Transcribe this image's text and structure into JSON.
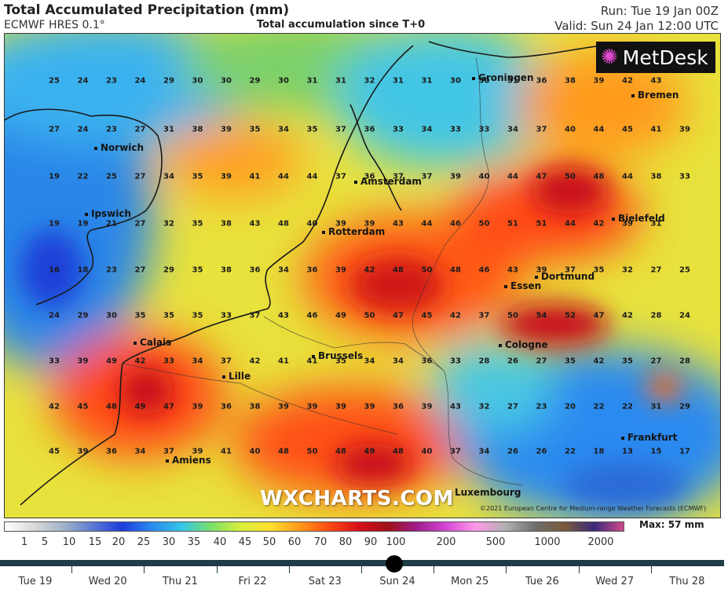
{
  "header": {
    "title": "Total Accumulated Precipitation (mm)",
    "model": "ECMWF HRES 0.1°",
    "subtitle": "Total accumulation since T+0",
    "run": "Run: Tue 19 Jan 00Z",
    "valid": "Valid: Sun 24 Jan 12:00 UTC"
  },
  "logo": {
    "text": "MetDesk"
  },
  "watermark": "WXCHARTS.COM",
  "copyright": "©2021 European Centre for Medium-range Weather Forecasts (ECMWF)",
  "grid_values": [
    [
      "25",
      "24",
      "23",
      "24",
      "29",
      "30",
      "30",
      "29",
      "30",
      "31",
      "31",
      "32",
      "31",
      "31",
      "30",
      "30",
      "31",
      "36",
      "38",
      "39",
      "42",
      "43"
    ],
    [
      "27",
      "24",
      "23",
      "27",
      "31",
      "38",
      "39",
      "35",
      "34",
      "35",
      "37",
      "36",
      "33",
      "34",
      "33",
      "33",
      "34",
      "37",
      "40",
      "44",
      "45",
      "41",
      "39"
    ],
    [
      "19",
      "22",
      "25",
      "27",
      "34",
      "35",
      "39",
      "41",
      "44",
      "44",
      "37",
      "36",
      "37",
      "37",
      "39",
      "40",
      "44",
      "47",
      "50",
      "48",
      "44",
      "38",
      "33"
    ],
    [
      "19",
      "19",
      "21",
      "27",
      "32",
      "35",
      "38",
      "43",
      "48",
      "40",
      "39",
      "39",
      "43",
      "44",
      "46",
      "50",
      "51",
      "51",
      "44",
      "42",
      "39",
      "31"
    ],
    [
      "16",
      "18",
      "23",
      "27",
      "29",
      "35",
      "38",
      "36",
      "34",
      "36",
      "39",
      "42",
      "48",
      "50",
      "48",
      "46",
      "43",
      "39",
      "37",
      "35",
      "32",
      "27",
      "25"
    ],
    [
      "24",
      "29",
      "30",
      "35",
      "35",
      "35",
      "33",
      "37",
      "43",
      "46",
      "49",
      "50",
      "47",
      "45",
      "42",
      "37",
      "50",
      "54",
      "52",
      "47",
      "42",
      "28",
      "24"
    ],
    [
      "33",
      "39",
      "49",
      "42",
      "33",
      "34",
      "37",
      "42",
      "41",
      "41",
      "35",
      "34",
      "34",
      "36",
      "33",
      "28",
      "26",
      "27",
      "35",
      "42",
      "35",
      "27",
      "28"
    ],
    [
      "42",
      "45",
      "48",
      "49",
      "47",
      "39",
      "36",
      "38",
      "39",
      "39",
      "39",
      "39",
      "36",
      "39",
      "43",
      "32",
      "27",
      "23",
      "20",
      "22",
      "22",
      "31",
      "29"
    ],
    [
      "45",
      "39",
      "36",
      "34",
      "37",
      "39",
      "41",
      "40",
      "48",
      "50",
      "48",
      "49",
      "48",
      "40",
      "37",
      "34",
      "26",
      "26",
      "22",
      "18",
      "13",
      "15",
      "17"
    ]
  ],
  "cities": [
    {
      "name": "Groningen"
    },
    {
      "name": "Bremen"
    },
    {
      "name": "Norwich"
    },
    {
      "name": "Amsterdam"
    },
    {
      "name": "Ipswich"
    },
    {
      "name": "Bielefeld"
    },
    {
      "name": "Rotterdam"
    },
    {
      "name": "Dortmund"
    },
    {
      "name": "Essen"
    },
    {
      "name": "Calais"
    },
    {
      "name": "Cologne"
    },
    {
      "name": "Brussels"
    },
    {
      "name": "Lille"
    },
    {
      "name": "Frankfurt"
    },
    {
      "name": "Amiens"
    },
    {
      "name": "Luxembourg"
    }
  ],
  "legend": {
    "ticks": [
      "1",
      "5",
      "10",
      "15",
      "20",
      "25",
      "30",
      "35",
      "40",
      "45",
      "50",
      "60",
      "70",
      "80",
      "90",
      "100",
      "200",
      "500",
      "1000",
      "2000"
    ],
    "max_label": "Max: 57 mm",
    "colors": [
      "#ffffff",
      "#d9d9d9",
      "#a0b4c8",
      "#5a78d2",
      "#1e3cdc",
      "#2a8af0",
      "#33c6e8",
      "#7ae06a",
      "#d8ee3c",
      "#ffe030",
      "#ff9a1a",
      "#ff4a12",
      "#d8101a",
      "#a0101a",
      "#a01e8c",
      "#d648d6",
      "#ff9ae8",
      "#b0b0b0",
      "#6e6e6e",
      "#7a5a3a",
      "#3a2a7a",
      "#d04a8a"
    ]
  },
  "timeline": {
    "days": [
      "Tue 19",
      "Wed 20",
      "Thu 21",
      "Fri 22",
      "Sat 23",
      "Sun 24",
      "Mon 25",
      "Tue 26",
      "Wed 27",
      "Thu 28"
    ],
    "current": "Sun 24",
    "position_fraction": 0.545
  }
}
